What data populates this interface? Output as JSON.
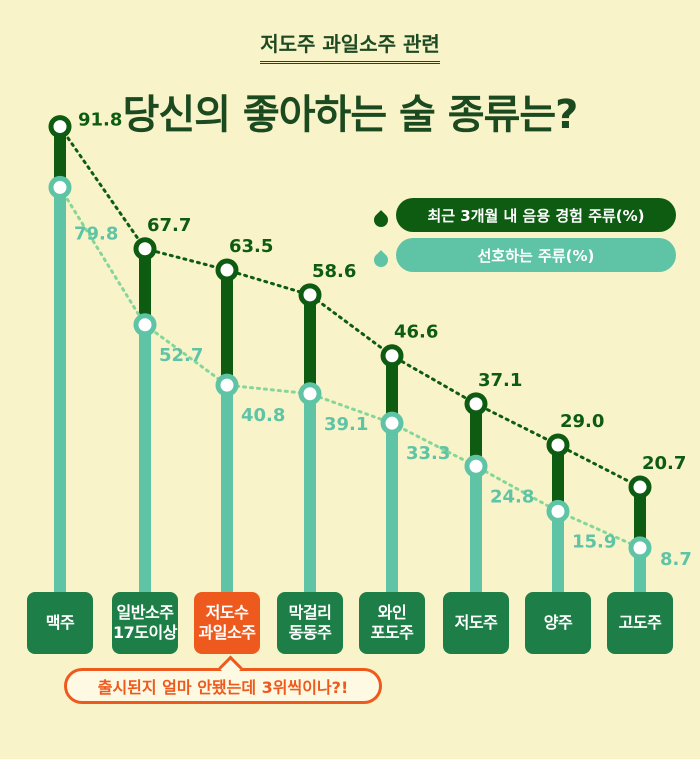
{
  "header": {
    "kicker": "저도주 과일소주 관련",
    "title": "당신의 좋아하는 술 종류는?"
  },
  "chart_data": {
    "type": "line",
    "categories": [
      "맥주",
      "일반소주\n17도이상",
      "저도수\n과일소주",
      "막걸리\n동동주",
      "와인\n포도주",
      "저도주",
      "양주",
      "고도주"
    ],
    "highlight_category": "저도수\n과일소주",
    "series": [
      {
        "name": "최근 3개월 내 음용 경험 주류(%)",
        "values": [
          91.8,
          67.7,
          63.5,
          58.6,
          46.6,
          37.1,
          29.0,
          20.7
        ],
        "color": "#0d5c12"
      },
      {
        "name": "선호하는 주류(%)",
        "values": [
          79.8,
          52.7,
          40.8,
          39.1,
          33.3,
          24.8,
          15.9,
          8.7
        ],
        "color": "#5fc4a6"
      }
    ],
    "value_labels": {
      "experience": [
        "91.8",
        "67.7",
        "63.5",
        "58.6",
        "46.6",
        "37.1",
        "29.0",
        "20.7"
      ],
      "preference": [
        "79.8",
        "52.7",
        "40.8",
        "39.1",
        "33.3",
        "24.8",
        "15.9",
        "8.7"
      ]
    },
    "ylim": [
      0,
      100
    ],
    "legend_position": "top-right",
    "grid": false
  },
  "callout": "출시된지 얼마 안됐는데 3위씩이나?!",
  "colors": {
    "background": "#f8f3c8",
    "dark_green": "#0d5c12",
    "mint": "#5fc4a6",
    "category_box": "#1d7f47",
    "highlight": "#ee5a1d"
  }
}
